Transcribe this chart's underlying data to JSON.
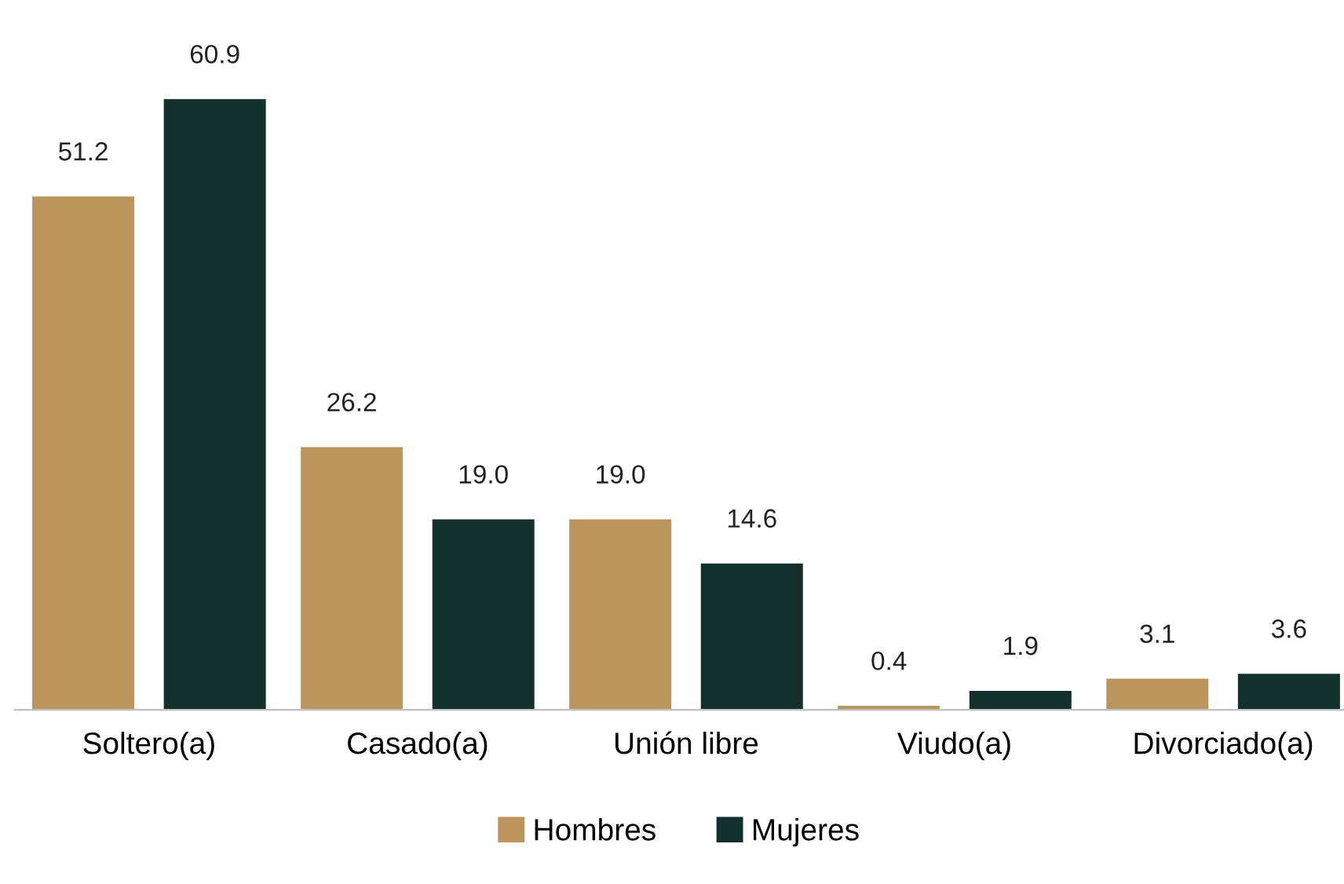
{
  "chart_data": {
    "type": "bar",
    "categories": [
      "Soltero(a)",
      "Casado(a)",
      "Unión libre",
      "Viudo(a)",
      "Divorciado(a)"
    ],
    "series": [
      {
        "name": "Hombres",
        "color": "#bb955b",
        "values": [
          51.2,
          26.2,
          19.0,
          0.4,
          3.1
        ],
        "value_labels": [
          "51.2",
          "26.2",
          "19.0",
          "0.4",
          "3.1"
        ]
      },
      {
        "name": "Mujeres",
        "color": "#12302c",
        "values": [
          60.9,
          19.0,
          14.6,
          1.9,
          3.6
        ],
        "value_labels": [
          "60.9",
          "19.0",
          "14.6",
          "1.9",
          "3.6"
        ]
      }
    ],
    "legend": "bottom",
    "grid": false,
    "tick_labels": "x"
  }
}
